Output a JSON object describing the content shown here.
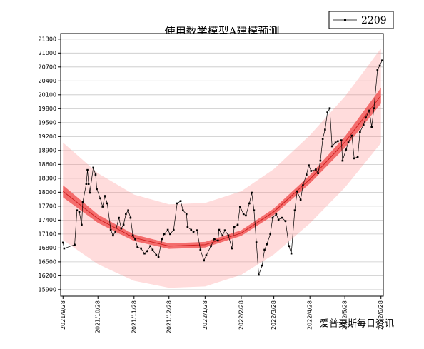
{
  "chart_data": {
    "type": "line",
    "title": "使用数学模型A建模预测",
    "watermark": "爱普麦斯每日资讯",
    "legend": "top-right",
    "grid": true,
    "series": [
      {
        "name": "2209",
        "color": "#000000",
        "x": [
          "2021/9/28",
          "2021/9/29",
          "2021/10/8",
          "2021/10/10",
          "2021/10/12",
          "2021/10/14",
          "2021/10/15",
          "2021/10/18",
          "2021/10/19",
          "2021/10/20",
          "2021/10/21",
          "2021/10/24",
          "2021/10/26",
          "2021/10/27",
          "2021/10/30",
          "2021/11/1",
          "2021/11/3",
          "2021/11/5",
          "2021/11/8",
          "2021/11/10",
          "2021/11/12",
          "2021/11/15",
          "2021/11/17",
          "2021/11/19",
          "2021/11/21",
          "2021/11/23",
          "2021/11/25",
          "2021/11/27",
          "2021/11/29",
          "2021/12/1",
          "2021/12/4",
          "2021/12/7",
          "2021/12/9",
          "2021/12/12",
          "2021/12/14",
          "2021/12/17",
          "2021/12/19",
          "2021/12/22",
          "2021/12/24",
          "2021/12/27",
          "2021/12/29",
          "2022/1/1",
          "2022/1/4",
          "2022/1/7",
          "2022/1/9",
          "2022/1/12",
          "2022/1/13",
          "2022/1/16",
          "2022/1/18",
          "2022/1/21",
          "2022/1/24",
          "2022/1/27",
          "2022/1/29",
          "2022/2/2",
          "2022/2/5",
          "2022/2/8",
          "2022/2/9",
          "2022/2/12",
          "2022/2/14",
          "2022/2/17",
          "2022/2/20",
          "2022/2/22",
          "2022/2/25",
          "2022/2/27",
          "2022/3/2",
          "2022/3/4",
          "2022/3/7",
          "2022/3/9",
          "2022/3/11",
          "2022/3/13",
          "2022/3/15",
          "2022/3/18",
          "2022/3/20",
          "2022/3/22",
          "2022/3/25",
          "2022/3/27",
          "2022/3/30",
          "2022/4/1",
          "2022/4/4",
          "2022/4/7",
          "2022/4/10",
          "2022/4/12",
          "2022/4/15",
          "2022/4/17",
          "2022/4/20",
          "2022/4/22",
          "2022/4/25",
          "2022/4/27",
          "2022/4/29",
          "2022/5/3",
          "2022/5/5",
          "2022/5/7",
          "2022/5/9",
          "2022/5/11",
          "2022/5/13",
          "2022/5/15",
          "2022/5/17",
          "2022/5/20",
          "2022/5/22",
          "2022/5/25",
          "2022/5/26",
          "2022/5/29",
          "2022/5/31",
          "2022/6/3",
          "2022/6/5",
          "2022/6/8",
          "2022/6/10",
          "2022/6/13",
          "2022/6/15",
          "2022/6/18",
          "2022/6/20",
          "2022/6/22",
          "2022/6/25",
          "2022/6/27",
          "2022/6/29"
        ],
        "values": [
          16915,
          16790,
          16870,
          17610,
          17580,
          17300,
          17790,
          18180,
          18480,
          18180,
          17990,
          18530,
          18380,
          18070,
          17870,
          17690,
          17920,
          17760,
          17190,
          17070,
          17150,
          17450,
          17220,
          17300,
          17530,
          17610,
          17450,
          17070,
          16990,
          16820,
          16790,
          16680,
          16730,
          16840,
          16760,
          16650,
          16610,
          16990,
          17100,
          17190,
          17100,
          17190,
          17760,
          17810,
          17610,
          17530,
          17250,
          17190,
          17150,
          17180,
          16760,
          16530,
          16640,
          16840,
          16990,
          16960,
          17190,
          17070,
          17180,
          17070,
          16790,
          17250,
          17300,
          17690,
          17530,
          17500,
          17760,
          17990,
          17610,
          16920,
          16220,
          16420,
          16760,
          16880,
          17100,
          17450,
          17530,
          17410,
          17450,
          17380,
          16840,
          16680,
          17610,
          18020,
          17840,
          18150,
          18380,
          18580,
          18460,
          18490,
          18410,
          18680,
          19150,
          19350,
          19720,
          19810,
          18990,
          19070,
          19100,
          19120,
          18680,
          18920,
          19070,
          19220,
          18730,
          18760,
          19300,
          19450,
          19610,
          19760,
          19410,
          19810,
          20640,
          20730,
          20840
        ]
      }
    ],
    "fit": {
      "x": [
        "2021/9/28",
        "2021/10/28",
        "2021/11/28",
        "2021/12/28",
        "2022/1/28",
        "2022/2/28",
        "2022/3/28",
        "2022/4/28",
        "2022/5/28",
        "2022/6/28"
      ],
      "center": [
        18020,
        17430,
        17020,
        16840,
        16870,
        17120,
        17580,
        18280,
        19080,
        20080
      ],
      "confidence": [
        130,
        90,
        70,
        60,
        60,
        60,
        70,
        90,
        120,
        170
      ],
      "prediction": [
        1050,
        980,
        930,
        900,
        900,
        900,
        920,
        950,
        980,
        1020
      ]
    },
    "xlim": [
      "2021/9/26",
      "2022/6/30"
    ],
    "xticks": [
      "2021/9/28",
      "2021/10/28",
      "2021/11/28",
      "2021/12/28",
      "2022/1/28",
      "2022/2/28",
      "2022/3/28",
      "2022/4/28",
      "2022/5/28",
      "2022/6/28"
    ],
    "ylim": [
      15760,
      21420
    ],
    "yticks": [
      15900,
      16200,
      16500,
      16800,
      17100,
      17400,
      17700,
      18000,
      18300,
      18600,
      18900,
      19200,
      19500,
      19800,
      20100,
      20400,
      20700,
      21000,
      21300
    ]
  }
}
